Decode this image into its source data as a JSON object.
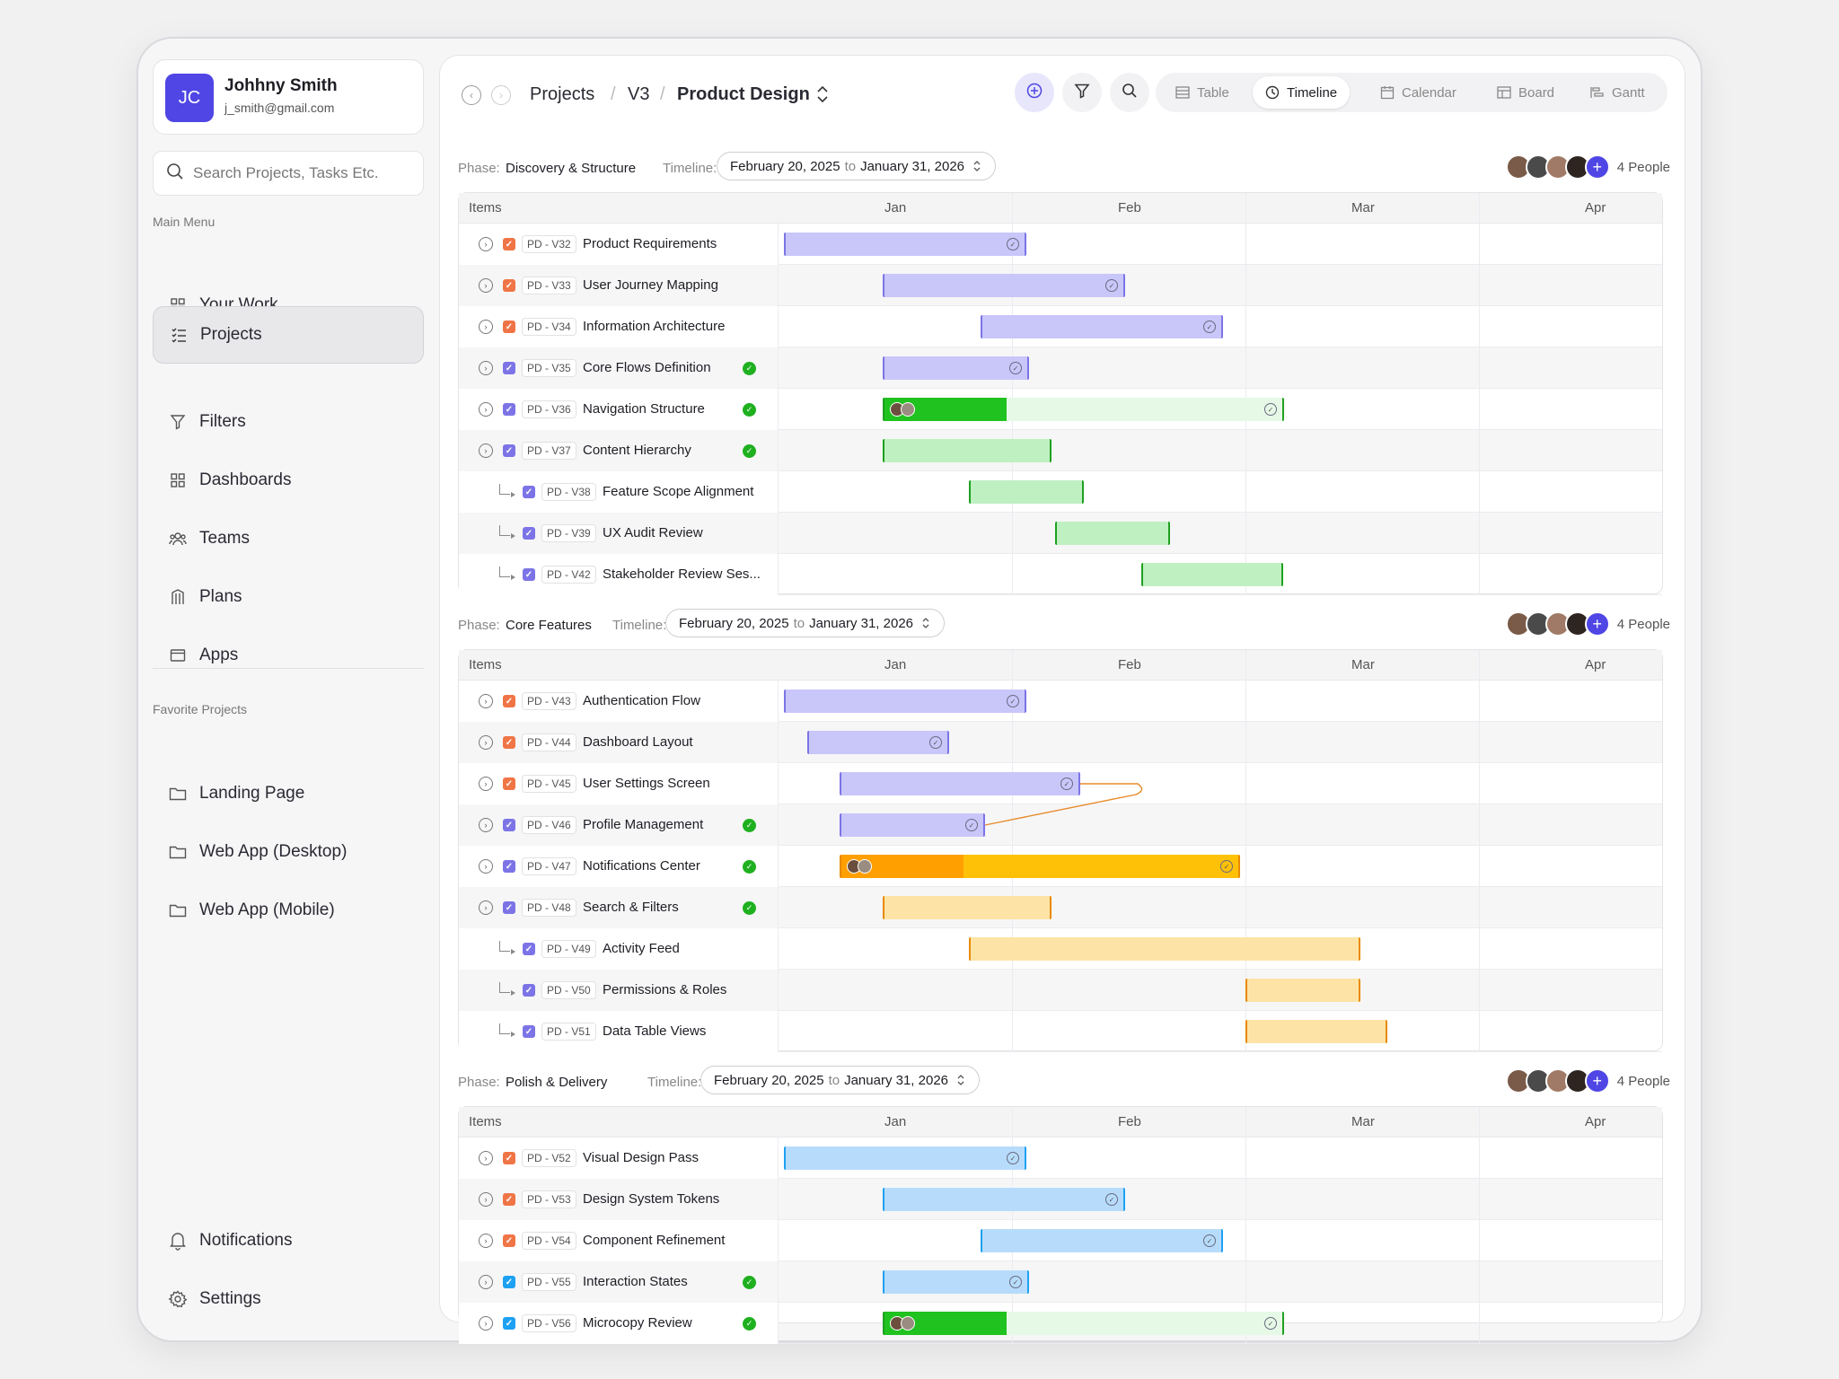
{
  "user": {
    "initials": "JC",
    "name": "Johhny Smith",
    "email": "j_smith@gmail.com"
  },
  "search": {
    "placeholder": "Search Projects, Tasks Etc."
  },
  "menu": {
    "label": "Main Menu",
    "items": [
      {
        "label": "Your Work",
        "icon": "grid-icon"
      },
      {
        "label": "Projects",
        "icon": "list-check-icon",
        "active": true
      },
      {
        "label": "Filters",
        "icon": "filter-icon"
      },
      {
        "label": "Dashboards",
        "icon": "dashboard-icon"
      },
      {
        "label": "Teams",
        "icon": "teams-icon"
      },
      {
        "label": "Plans",
        "icon": "plans-icon"
      },
      {
        "label": "Apps",
        "icon": "apps-icon"
      }
    ]
  },
  "favorites": {
    "label": "Favorite Projects",
    "items": [
      {
        "label": "Landing Page"
      },
      {
        "label": "Web App (Desktop)"
      },
      {
        "label": "Web App (Mobile)"
      }
    ]
  },
  "footer_menu": {
    "notifications": "Notifications",
    "settings": "Settings"
  },
  "breadcrumb": {
    "projects": "Projects",
    "version": "V3",
    "current": "Product Design",
    "sep": "/"
  },
  "views": {
    "table": "Table",
    "timeline": "Timeline",
    "calendar": "Calendar",
    "board": "Board",
    "gantt": "Gantt"
  },
  "labels": {
    "phase": "Phase:",
    "timeline": "Timeline:",
    "to": "to",
    "items": "Items"
  },
  "months": [
    "Jan",
    "Feb",
    "Mar",
    "Apr"
  ],
  "colors": {
    "accent": "#4f46e5",
    "purple_bar": "#c9c6fa",
    "green_bar": "#bff0c2",
    "green_dark": "#1fc21f",
    "yellow_bar": "#fde4a6",
    "orange": "#ffc107",
    "blue_bar": "#b7dcfb"
  },
  "phases": [
    {
      "name": "Discovery & Structure",
      "timeline_start": "February 20, 2025",
      "timeline_end": "January 31, 2026",
      "people": "4 People",
      "rows": [
        {
          "code": "PD - V32",
          "name": "Product Requirements",
          "check": "or",
          "sub": false,
          "done": false
        },
        {
          "code": "PD - V33",
          "name": "User Journey Mapping",
          "check": "or",
          "sub": false,
          "done": false
        },
        {
          "code": "PD - V34",
          "name": "Information Architecture",
          "check": "or",
          "sub": false,
          "done": false
        },
        {
          "code": "PD - V35",
          "name": "Core Flows Definition",
          "check": "pu",
          "sub": false,
          "done": true
        },
        {
          "code": "PD - V36",
          "name": "Navigation Structure",
          "check": "pu",
          "sub": false,
          "done": true
        },
        {
          "code": "PD - V37",
          "name": "Content Hierarchy",
          "check": "pu",
          "sub": false,
          "done": true
        },
        {
          "code": "PD - V38",
          "name": "Feature Scope Alignment",
          "check": "pu",
          "sub": true,
          "done": false
        },
        {
          "code": "PD - V39",
          "name": "UX Audit Review",
          "check": "pu",
          "sub": true,
          "done": false
        },
        {
          "code": "PD - V42",
          "name": "Stakeholder Review Ses...",
          "check": "pu",
          "sub": true,
          "done": false
        }
      ]
    },
    {
      "name": "Core Features",
      "timeline_start": "February 20, 2025",
      "timeline_end": "January 31, 2026",
      "people": "4 People",
      "rows": [
        {
          "code": "PD - V43",
          "name": "Authentication Flow",
          "check": "or",
          "sub": false,
          "done": false
        },
        {
          "code": "PD - V44",
          "name": "Dashboard Layout",
          "check": "or",
          "sub": false,
          "done": false
        },
        {
          "code": "PD - V45",
          "name": "User Settings Screen",
          "check": "or",
          "sub": false,
          "done": false
        },
        {
          "code": "PD - V46",
          "name": "Profile Management",
          "check": "pu",
          "sub": false,
          "done": true
        },
        {
          "code": "PD - V47",
          "name": "Notifications Center",
          "check": "pu",
          "sub": false,
          "done": true
        },
        {
          "code": "PD - V48",
          "name": "Search & Filters",
          "check": "pu",
          "sub": false,
          "done": true
        },
        {
          "code": "PD - V49",
          "name": "Activity Feed",
          "check": "pu",
          "sub": true,
          "done": false
        },
        {
          "code": "PD - V50",
          "name": "Permissions & Roles",
          "check": "pu",
          "sub": true,
          "done": false
        },
        {
          "code": "PD - V51",
          "name": "Data Table Views",
          "check": "pu",
          "sub": true,
          "done": false
        }
      ]
    },
    {
      "name": "Polish & Delivery",
      "timeline_start": "February 20, 2025",
      "timeline_end": "January 31, 2026",
      "people": "4 People",
      "rows": [
        {
          "code": "PD - V52",
          "name": "Visual Design Pass",
          "check": "or",
          "sub": false,
          "done": false
        },
        {
          "code": "PD - V53",
          "name": "Design System Tokens",
          "check": "or",
          "sub": false,
          "done": false
        },
        {
          "code": "PD - V54",
          "name": "Component Refinement",
          "check": "or",
          "sub": false,
          "done": false
        },
        {
          "code": "PD - V55",
          "name": "Interaction States",
          "check": "bl",
          "sub": false,
          "done": true
        },
        {
          "code": "PD - V56",
          "name": "Microcopy Review",
          "check": "bl",
          "sub": false,
          "done": true
        }
      ]
    }
  ]
}
